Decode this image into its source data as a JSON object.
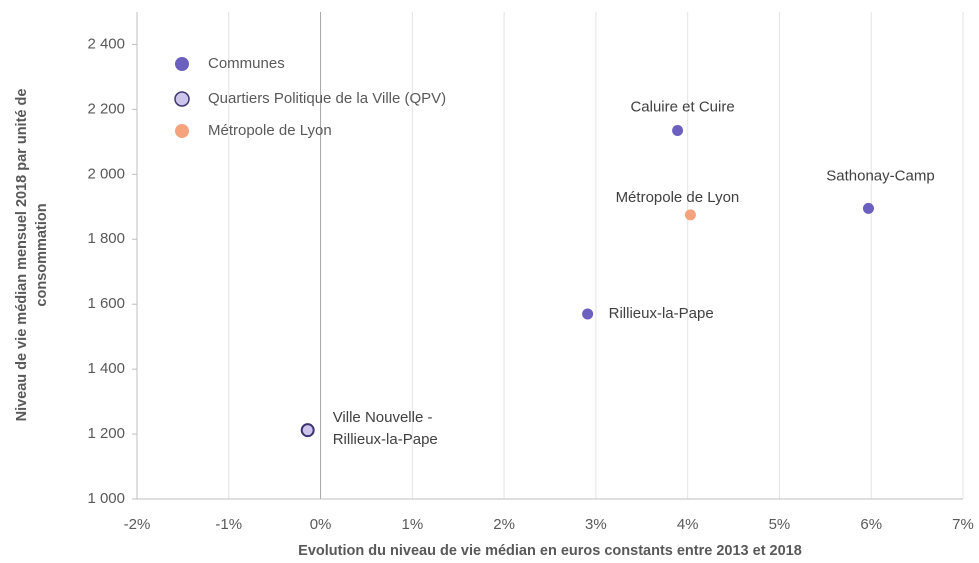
{
  "chart_data": {
    "type": "scatter",
    "x_label": "Evolution du niveau de vie médian en euros constants entre 2013 et 2018",
    "y_label": [
      "Niveau de vie médian mensuel 2018 par unité de",
      "consommation"
    ],
    "xlim": [
      -2,
      7
    ],
    "xticks": [
      {
        "value": -2,
        "label": "-2%"
      },
      {
        "value": -1,
        "label": "-1%"
      },
      {
        "value": 0,
        "label": "0%"
      },
      {
        "value": 1,
        "label": "1%"
      },
      {
        "value": 2,
        "label": "2%"
      },
      {
        "value": 3,
        "label": "3%"
      },
      {
        "value": 4,
        "label": "4%"
      },
      {
        "value": 5,
        "label": "5%"
      },
      {
        "value": 6,
        "label": "6%"
      },
      {
        "value": 7,
        "label": "7%"
      }
    ],
    "ylim": [
      1000,
      2500
    ],
    "yticks": [
      {
        "value": 1000,
        "label": "1 000"
      },
      {
        "value": 1200,
        "label": "1 200"
      },
      {
        "value": 1400,
        "label": "1 400"
      },
      {
        "value": 1600,
        "label": "1 600"
      },
      {
        "value": 1800,
        "label": "1 800"
      },
      {
        "value": 2000,
        "label": "2 000"
      },
      {
        "value": 2200,
        "label": "2 200"
      },
      {
        "value": 2400,
        "label": "2 400"
      }
    ],
    "grid": true,
    "legend_position": "upper left",
    "series": [
      {
        "name": "Communes",
        "color": "#6b5fc0",
        "x": [
          3.89,
          5.97,
          2.91
        ],
        "values": [
          2135,
          1895,
          1570
        ],
        "labels": [
          "Caluire et Cuire",
          "Sathonay-Camp",
          "Rillieux-la-Pape"
        ]
      },
      {
        "name": "Quartiers Politique de la Ville (QPV)",
        "color": "#cdc6ea",
        "edge_color": "#3d3670",
        "x": [
          -0.14
        ],
        "values": [
          1212
        ],
        "labels": [
          [
            "Ville Nouvelle -",
            "Rillieux-la-Pape"
          ]
        ]
      },
      {
        "name": "Métropole de Lyon",
        "color": "#f5a37f",
        "x": [
          4.03
        ],
        "values": [
          1875
        ],
        "labels": [
          "Métropole de Lyon"
        ]
      }
    ]
  }
}
